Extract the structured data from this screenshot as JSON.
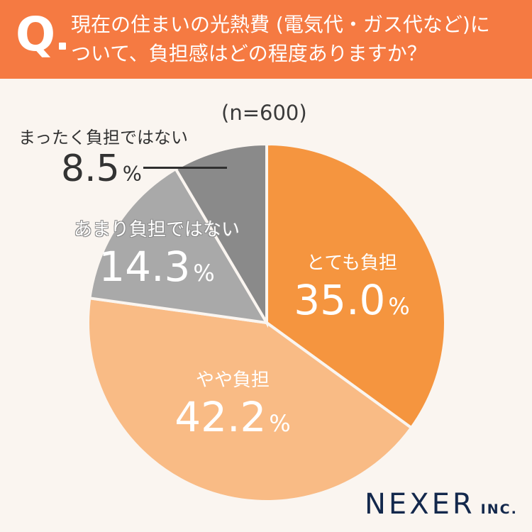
{
  "header": {
    "q_mark": "Q",
    "question_line1": "現在の住まいの光熱費 (電気代・ガス代など)に",
    "question_line2": "ついて、負担感はどの程度ありますか？",
    "background_color": "#f57a42"
  },
  "sample_size_label": "(n=600)",
  "logo": {
    "brand": "NEXER",
    "suffix": "INC."
  },
  "labels": {
    "totemo": {
      "category": "とても負担",
      "value": "35.0",
      "unit": "%"
    },
    "yaya": {
      "category": "やや負担",
      "value": "42.2",
      "unit": "%"
    },
    "amari": {
      "category": "あまり負担ではない",
      "value": "14.3",
      "unit": "%"
    },
    "mattaku": {
      "category": "まったく負担ではない",
      "value": "8.5",
      "unit": "%"
    }
  },
  "chart_data": {
    "type": "pie",
    "title": "現在の住まいの光熱費 (電気代・ガス代など)について、負担感はどの程度ありますか？",
    "subtitle": "(n=600)",
    "categories": [
      "とても負担",
      "やや負担",
      "あまり負担ではない",
      "まったく負担ではない"
    ],
    "values": [
      35.0,
      42.2,
      14.3,
      8.5
    ],
    "unit": "%",
    "colors": [
      "#f5953f",
      "#f9bb85",
      "#a9a9a9",
      "#8a8a8a"
    ],
    "start_angle": "12 o'clock, clockwise",
    "legend": "labels placed on slices"
  }
}
